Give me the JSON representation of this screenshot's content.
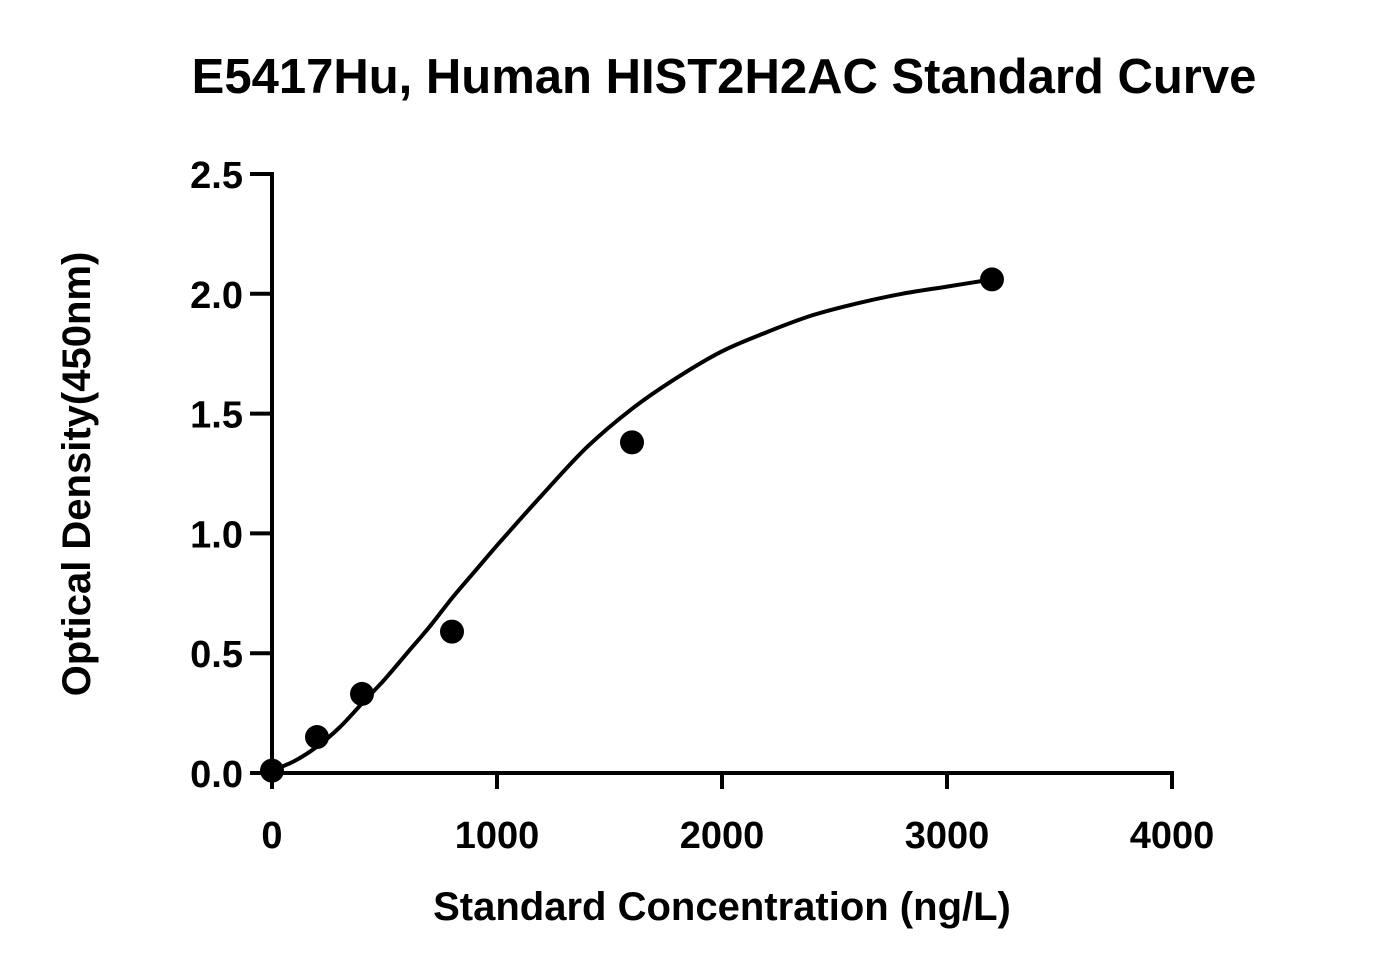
{
  "chart_data": {
    "type": "scatter",
    "title": "E5417Hu, Human HIST2H2AC Standard Curve",
    "xlabel": "Standard Concentration (ng/L)",
    "ylabel": "Optical Density(450nm)",
    "xlim": [
      0,
      4000
    ],
    "ylim": [
      0,
      2.5
    ],
    "x_ticks": [
      0,
      1000,
      2000,
      3000,
      4000
    ],
    "x_tick_labels": [
      "0",
      "1000",
      "2000",
      "3000",
      "4000"
    ],
    "y_ticks": [
      0,
      0.5,
      1.0,
      1.5,
      2.0,
      2.5
    ],
    "y_tick_labels": [
      "0.0",
      "0.5",
      "1.0",
      "1.5",
      "2.0",
      "2.5"
    ],
    "grid": false,
    "legend": "none",
    "series": [
      {
        "x": [
          0,
          200,
          400,
          800,
          1600,
          3200
        ],
        "y": [
          0.01,
          0.15,
          0.33,
          0.59,
          1.38,
          2.06
        ]
      }
    ],
    "fit_curve": {
      "x": [
        0,
        100,
        200,
        300,
        400,
        500,
        600,
        700,
        800,
        900,
        1000,
        1200,
        1400,
        1600,
        1800,
        2000,
        2200,
        2400,
        2600,
        2800,
        3000,
        3200
      ],
      "y": [
        0.01,
        0.05,
        0.11,
        0.19,
        0.29,
        0.39,
        0.5,
        0.61,
        0.73,
        0.84,
        0.95,
        1.16,
        1.36,
        1.52,
        1.65,
        1.76,
        1.84,
        1.91,
        1.96,
        2.0,
        2.03,
        2.06
      ]
    },
    "colors": {
      "marker": "#000000",
      "line": "#000000",
      "axis": "#000000"
    }
  }
}
